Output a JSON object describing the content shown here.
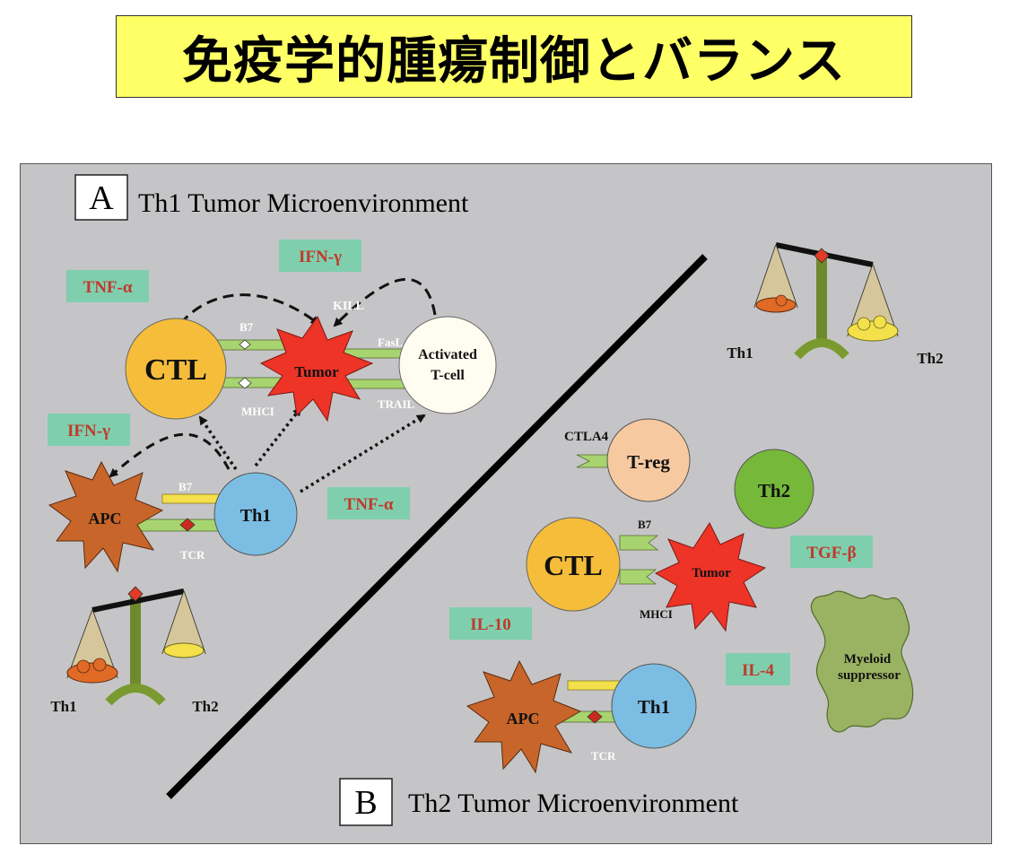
{
  "title": "免疫学的腫瘍制御とバランス",
  "colors": {
    "title_bg": "#ffff66",
    "panel_bg": "#c5c5c7",
    "cytokine_box": "#7fcfae",
    "cytokine_text": "#c0392b",
    "ctl": "#f6bd3a",
    "th1": "#7cbde3",
    "th2": "#76b839",
    "treg": "#f7c9a0",
    "tumor": "#ee3327",
    "apc": "#c8652a",
    "myeloid": "#9ab363",
    "receptor_green": "#a7d46f",
    "receptor_yellow": "#f3e04a"
  },
  "panel_a": {
    "letter": "A",
    "heading": "Th1 Tumor Microenvironment",
    "cells": {
      "ctl": "CTL",
      "tumor": "Tumor",
      "activated_line1": "Activated",
      "activated_line2": "T-cell",
      "th1": "Th1",
      "apc": "APC"
    },
    "cytokines": {
      "tnf_top": "TNF-α",
      "ifn_top": "IFN-γ",
      "ifn_left": "IFN-γ",
      "tnf_mid": "TNF-α"
    },
    "labels": {
      "b7_top": "B7",
      "kill": "KILL",
      "fasl": "FasL",
      "mhci": "MHCI",
      "trail": "TRAIL",
      "b7_apc": "B7",
      "tcr": "TCR"
    },
    "balance": {
      "left": "Th1",
      "right": "Th2"
    }
  },
  "panel_b": {
    "letter": "B",
    "heading": "Th2 Tumor Microenvironment",
    "cells": {
      "treg": "T-reg",
      "th2": "Th2",
      "ctl": "CTL",
      "tumor": "Tumor",
      "apc": "APC",
      "th1": "Th1",
      "myeloid_line1": "Myeloid",
      "myeloid_line2": "suppressor"
    },
    "cytokines": {
      "tgf": "TGF-β",
      "il10": "IL-10",
      "il4": "IL-4"
    },
    "labels": {
      "ctla4": "CTLA4",
      "b7": "B7",
      "mhci": "MHCI",
      "tcr": "TCR"
    },
    "balance": {
      "left": "Th1",
      "right": "Th2"
    }
  }
}
